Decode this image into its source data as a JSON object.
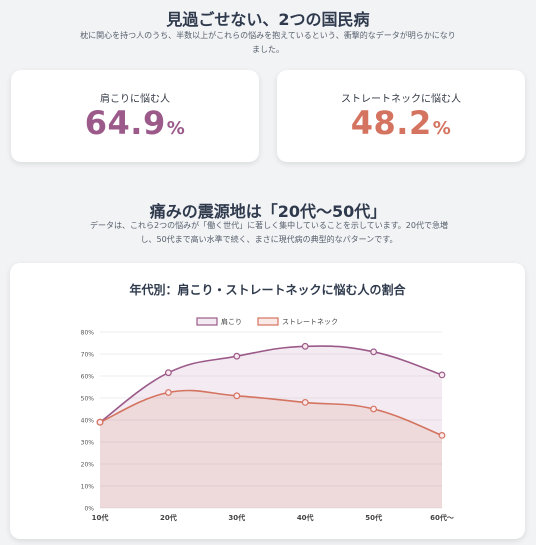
{
  "section1": {
    "title": "見過ごせない、2つの国民病",
    "description": "枕に関心を持つ人のうち、半数以上がこれらの悩みを抱えているという、衝撃的なデータが明らかになりました。"
  },
  "stats": [
    {
      "label": "肩こりに悩む人",
      "value": "64.9",
      "unit": "%",
      "color": "#9b5a8a"
    },
    {
      "label": "ストレートネックに悩む人",
      "value": "48.2",
      "unit": "%",
      "color": "#d4735f"
    }
  ],
  "section2": {
    "title": "痛みの震源地は「20代〜50代」",
    "description": "データは、これら2つの悩みが「働く世代」に著しく集中していることを示しています。20代で急増し、50代まで高い水準で続く、まさに現代病の典型的なパターンです。"
  },
  "chart_title": "年代別：肩こり・ストレートネックに悩む人の割合",
  "chart_data": {
    "type": "area",
    "categories": [
      "10代",
      "20代",
      "30代",
      "40代",
      "50代",
      "60代〜"
    ],
    "series": [
      {
        "name": "肩こり",
        "values": [
          39,
          61.5,
          69,
          73.5,
          71,
          60.5
        ],
        "color": "#9b5a8a",
        "fill": "rgba(155,90,138,0.12)"
      },
      {
        "name": "ストレートネック",
        "values": [
          39,
          52.5,
          51,
          48,
          45,
          33
        ],
        "color": "#d4735f",
        "fill": "rgba(212,115,95,0.15)"
      }
    ],
    "ylim": [
      0,
      80
    ],
    "yticks": [
      "0%",
      "10%",
      "20%",
      "30%",
      "40%",
      "50%",
      "60%",
      "70%",
      "80%"
    ],
    "legend_position": "top",
    "grid": true
  }
}
